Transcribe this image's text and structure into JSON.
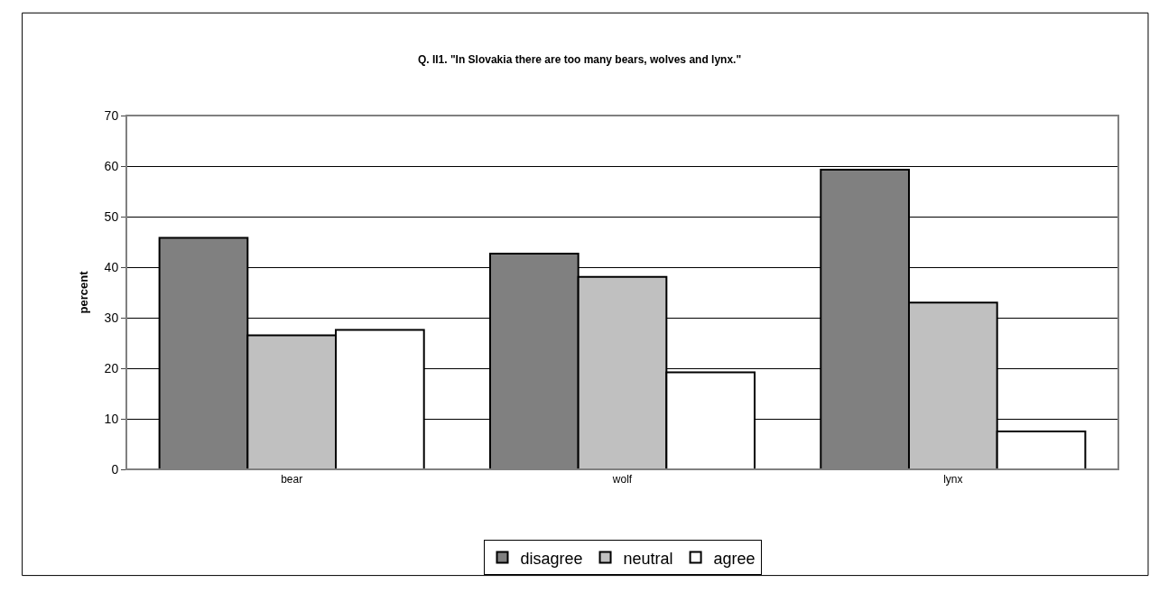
{
  "chart_data": {
    "type": "bar",
    "title": "Q. II1. \"In Slovakia there are too many bears, wolves and lynx.\"",
    "ylabel": "percent",
    "categories": [
      "bear",
      "wolf",
      "lynx"
    ],
    "series": [
      {
        "name": "disagree",
        "color": "#808080",
        "values": [
          45.8,
          42.7,
          59.3
        ]
      },
      {
        "name": "neutral",
        "color": "#c0c0c0",
        "values": [
          26.5,
          38.1,
          33.0
        ]
      },
      {
        "name": "agree",
        "color": "#ffffff",
        "values": [
          27.6,
          19.2,
          7.5
        ]
      }
    ],
    "ylim": [
      0,
      70
    ],
    "yticks": [
      0,
      10,
      20,
      30,
      40,
      50,
      60,
      70
    ],
    "grid": "y",
    "legend": "bottom"
  }
}
